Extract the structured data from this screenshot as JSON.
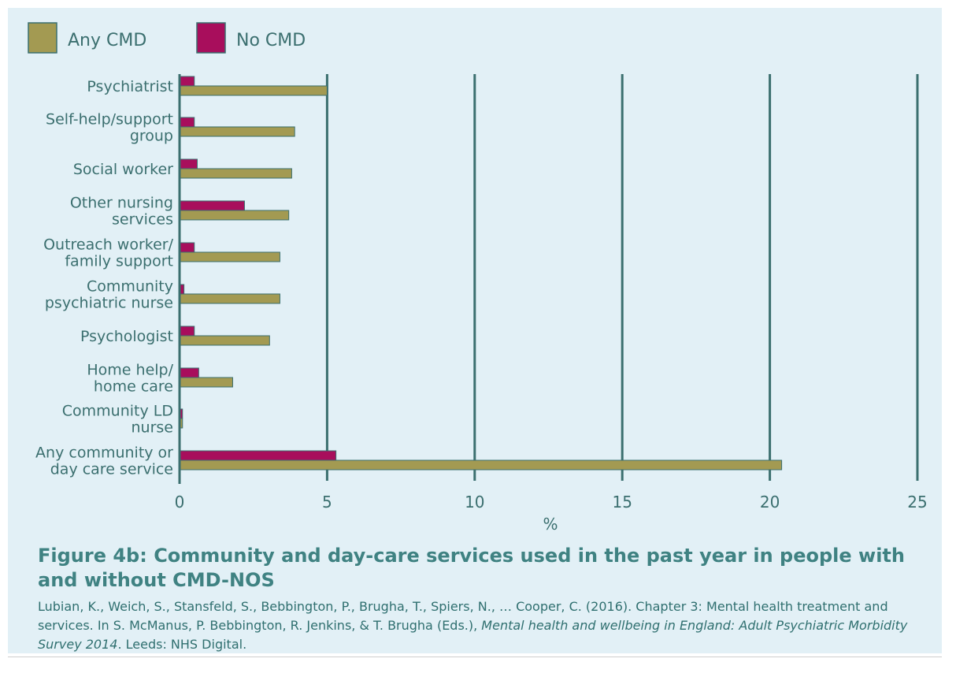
{
  "colors": {
    "any_cmd": "#a39a52",
    "no_cmd": "#a80e5c",
    "gridline": "#3b6f6f",
    "text": "#3b6f6f",
    "title": "#3f8282",
    "panel": "#e2f0f6"
  },
  "figure": {
    "title": "Figure 4b: Community and day-care services used in the past year in people with and without CMD-NOS",
    "source_part1": "Lubian, K., Weich, S., Stansfeld, S., Bebbington, P., Brugha, T., Spiers, N., … Cooper, C. (2016). Chapter 3: Mental health treatment and services. In S. McManus, P. Bebbington, R. Jenkins, & T. Brugha (Eds.), ",
    "source_italic": "Mental health and wellbeing in England: Adult Psychiatric Morbidity Survey 2014",
    "source_part2": ". Leeds: NHS Digital."
  },
  "chart_data": {
    "type": "bar",
    "orientation": "horizontal",
    "title": "",
    "xlabel": "%",
    "ylabel": "",
    "xlim": [
      0,
      25
    ],
    "xticks": [
      0,
      5,
      10,
      15,
      20,
      25
    ],
    "grid": true,
    "legend_position": "top-left",
    "categories": [
      [
        "Psychiatrist"
      ],
      [
        "Self-help/support",
        "group"
      ],
      [
        "Social worker"
      ],
      [
        "Other nursing",
        "services"
      ],
      [
        "Outreach worker/",
        "family support"
      ],
      [
        "Community",
        "psychiatric nurse"
      ],
      [
        "Psychologist"
      ],
      [
        "Home help/",
        "home care"
      ],
      [
        "Community LD",
        "nurse"
      ],
      [
        "Any community or",
        "day care service"
      ]
    ],
    "series": [
      {
        "name": "Any CMD",
        "color": "#a39a52",
        "values": [
          5.0,
          3.9,
          3.8,
          3.7,
          3.4,
          3.4,
          3.05,
          1.8,
          0.1,
          20.4
        ]
      },
      {
        "name": "No CMD",
        "color": "#a80e5c",
        "values": [
          0.5,
          0.5,
          0.6,
          2.2,
          0.5,
          0.15,
          0.5,
          0.65,
          0.1,
          5.3
        ]
      }
    ]
  }
}
